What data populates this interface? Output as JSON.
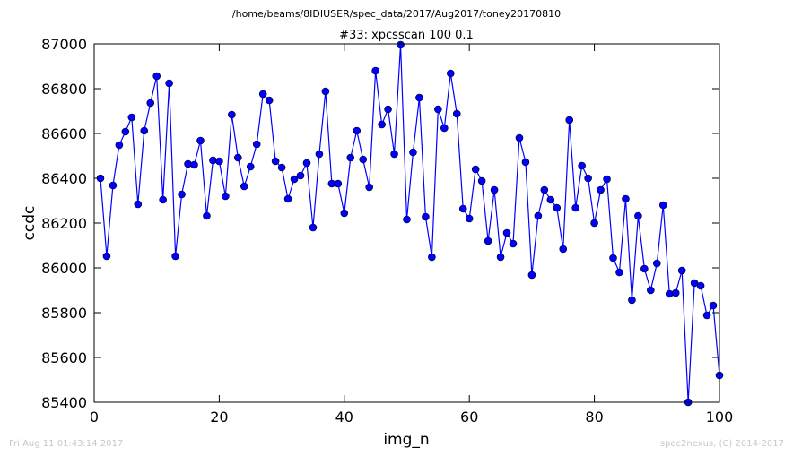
{
  "suptitle": "/home/beams/8IDIUSER/spec_data/2017/Aug2017/toney20170810",
  "footer_left": "Fri Aug 11 01:43:14 2017",
  "footer_right": "spec2nexus, (C) 2014-2017",
  "chart_data": {
    "type": "line",
    "title": "#33: xpcsscan 100 0.1",
    "xlabel": "img_n",
    "ylabel": "ccdc",
    "xlim": [
      0,
      100
    ],
    "ylim": [
      85400,
      87000
    ],
    "xticks": [
      0,
      20,
      40,
      60,
      80,
      100
    ],
    "yticks": [
      85400,
      85600,
      85800,
      86000,
      86200,
      86400,
      86600,
      86800,
      87000
    ],
    "line_color": "#0000ff",
    "marker": "circle",
    "marker_color": "#0000ff",
    "grid": false,
    "x": [
      1,
      2,
      3,
      4,
      5,
      6,
      7,
      8,
      9,
      10,
      11,
      12,
      13,
      14,
      15,
      16,
      17,
      18,
      19,
      20,
      21,
      22,
      23,
      24,
      25,
      26,
      27,
      28,
      29,
      30,
      31,
      32,
      33,
      34,
      35,
      36,
      37,
      38,
      39,
      40,
      41,
      42,
      43,
      44,
      45,
      46,
      47,
      48,
      49,
      50,
      51,
      52,
      53,
      54,
      55,
      56,
      57,
      58,
      59,
      60,
      61,
      62,
      63,
      64,
      65,
      66,
      67,
      68,
      69,
      70,
      71,
      72,
      73,
      74,
      75,
      76,
      77,
      78,
      79,
      80,
      81,
      82,
      83,
      84,
      85,
      86,
      87,
      88,
      89,
      90,
      91,
      92,
      93,
      94,
      95,
      96,
      97,
      98,
      99,
      100
    ],
    "y": [
      86400,
      86052,
      86368,
      86548,
      86608,
      86672,
      86284,
      86612,
      86736,
      86856,
      86304,
      86824,
      86052,
      86328,
      86464,
      86460,
      86568,
      86232,
      86480,
      86476,
      86320,
      86684,
      86492,
      86364,
      86452,
      86552,
      86776,
      86748,
      86476,
      86448,
      86308,
      86396,
      86412,
      86468,
      86180,
      86508,
      86788,
      86376,
      86376,
      86244,
      86492,
      86612,
      86484,
      86360,
      86880,
      86640,
      86708,
      86508,
      86996,
      86216,
      86516,
      86760,
      86228,
      86048,
      86708,
      86624,
      86868,
      86688,
      86264,
      86220,
      86440,
      86388,
      86120,
      86348,
      86048,
      86156,
      86108,
      86580,
      86472,
      85968,
      86232,
      86348,
      86304,
      86268,
      86084,
      86660,
      86268,
      86456,
      86400,
      86200,
      86348,
      86396,
      86044,
      85980,
      86308,
      85856,
      86232,
      85996,
      85900,
      86020,
      86280,
      85884,
      85888,
      85988,
      85400,
      85932,
      85920,
      85788,
      85832,
      85520
    ]
  }
}
